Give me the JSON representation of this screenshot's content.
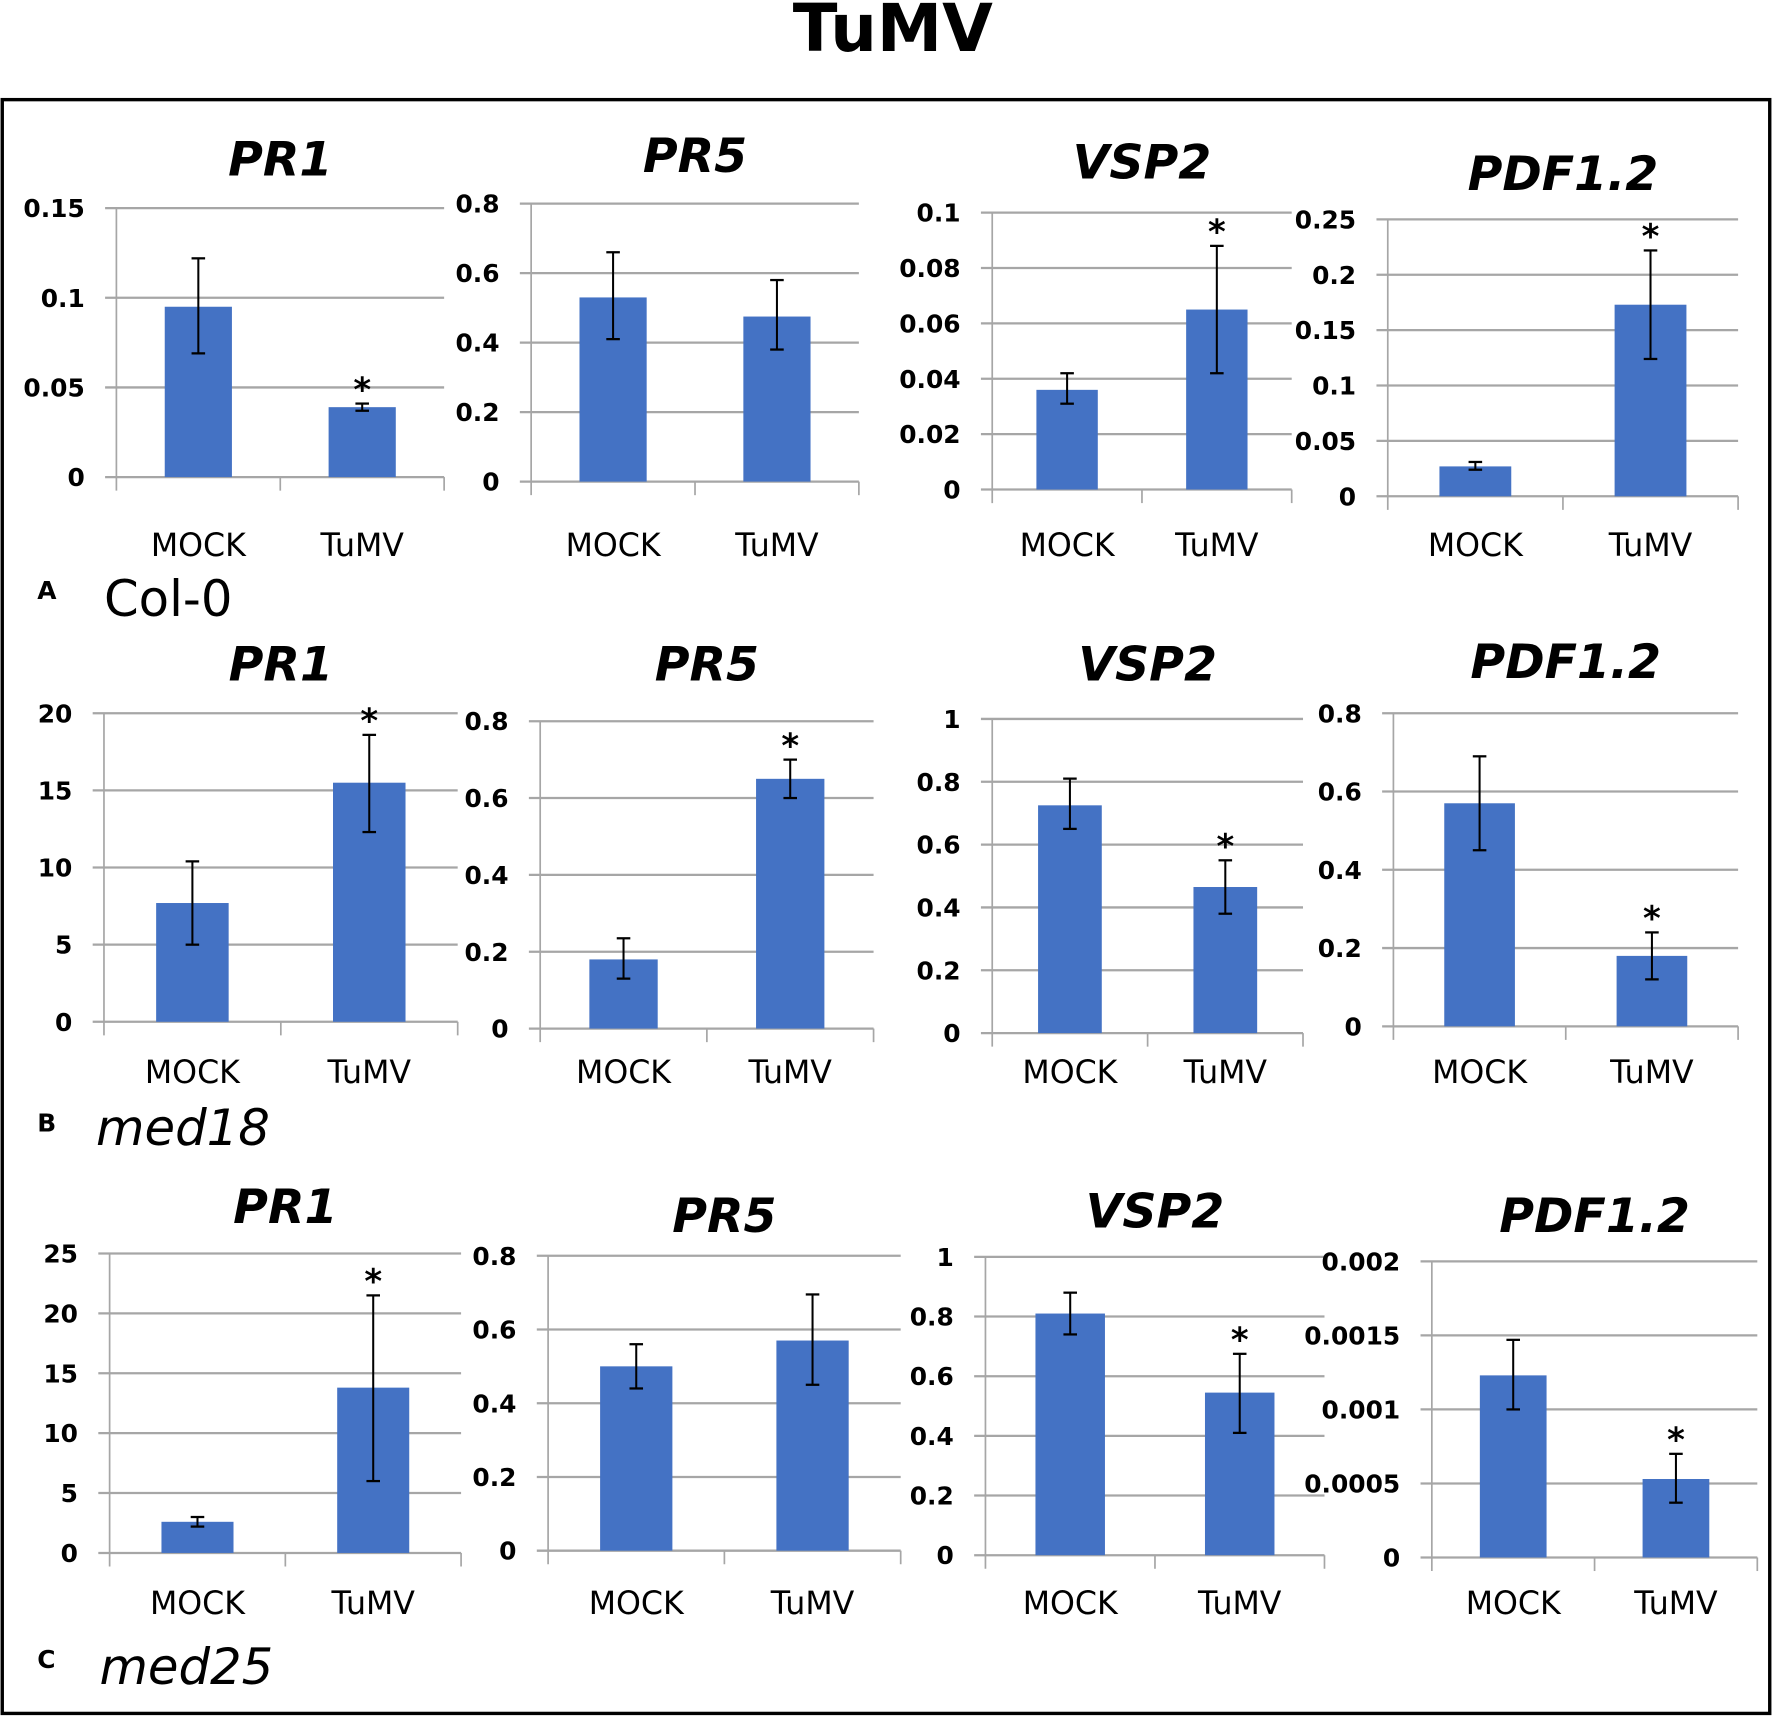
{
  "figure_title": "TuMV",
  "panels": [
    {
      "letter": "A",
      "genotype": "Col-0",
      "italic": false
    },
    {
      "letter": "B",
      "genotype": "med18",
      "italic": true
    },
    {
      "letter": "C",
      "genotype": "med25",
      "italic": true
    }
  ],
  "colors": {
    "bar": "#4472C4",
    "grid": "#A6A6A6",
    "border": "#000000"
  },
  "chart_data": [
    {
      "type": "bar",
      "panel": "A",
      "title": "PR1",
      "categories": [
        "MOCK",
        "TuMV"
      ],
      "values": [
        0.095,
        0.039
      ],
      "error_low": [
        0.069,
        0.037
      ],
      "error_high": [
        0.122,
        0.041
      ],
      "significant": [
        false,
        true
      ],
      "ylim": [
        0,
        0.15
      ],
      "ticks": [
        "0",
        "0.05",
        "0.1",
        "0.15"
      ],
      "grid": true
    },
    {
      "type": "bar",
      "panel": "A",
      "title": "PR5",
      "categories": [
        "MOCK",
        "TuMV"
      ],
      "values": [
        0.53,
        0.475
      ],
      "error_low": [
        0.41,
        0.38
      ],
      "error_high": [
        0.66,
        0.58
      ],
      "significant": [
        false,
        false
      ],
      "ylim": [
        0,
        0.8
      ],
      "ticks": [
        "0",
        "0.2",
        "0.4",
        "0.6",
        "0.8"
      ],
      "grid": true
    },
    {
      "type": "bar",
      "panel": "A",
      "title": "VSP2",
      "categories": [
        "MOCK",
        "TuMV"
      ],
      "values": [
        0.036,
        0.065
      ],
      "error_low": [
        0.031,
        0.042
      ],
      "error_high": [
        0.042,
        0.088
      ],
      "significant": [
        false,
        true
      ],
      "ylim": [
        0,
        0.1
      ],
      "ticks": [
        "0",
        "0.02",
        "0.04",
        "0.06",
        "0.08",
        "0.1"
      ],
      "grid": true
    },
    {
      "type": "bar",
      "panel": "A",
      "title": "PDF1.2",
      "categories": [
        "MOCK",
        "TuMV"
      ],
      "values": [
        0.027,
        0.173
      ],
      "error_low": [
        0.024,
        0.124
      ],
      "error_high": [
        0.031,
        0.222
      ],
      "significant": [
        false,
        true
      ],
      "ylim": [
        0,
        0.25
      ],
      "ticks": [
        "0",
        "0.05",
        "0.1",
        "0.15",
        "0.2",
        "0.25"
      ],
      "grid": true
    },
    {
      "type": "bar",
      "panel": "B",
      "title": "PR1",
      "categories": [
        "MOCK",
        "TuMV"
      ],
      "values": [
        7.7,
        15.5
      ],
      "error_low": [
        5.0,
        12.3
      ],
      "error_high": [
        10.4,
        18.6
      ],
      "significant": [
        false,
        true
      ],
      "ylim": [
        0,
        20
      ],
      "ticks": [
        "0",
        "5",
        "10",
        "15",
        "20"
      ],
      "grid": true
    },
    {
      "type": "bar",
      "panel": "B",
      "title": "PR5",
      "categories": [
        "MOCK",
        "TuMV"
      ],
      "values": [
        0.18,
        0.65
      ],
      "error_low": [
        0.13,
        0.6
      ],
      "error_high": [
        0.235,
        0.7
      ],
      "significant": [
        false,
        true
      ],
      "ylim": [
        0,
        0.8
      ],
      "ticks": [
        "0",
        "0.2",
        "0.4",
        "0.6",
        "0.8"
      ],
      "grid": true
    },
    {
      "type": "bar",
      "panel": "B",
      "title": "VSP2",
      "categories": [
        "MOCK",
        "TuMV"
      ],
      "values": [
        0.725,
        0.465
      ],
      "error_low": [
        0.65,
        0.38
      ],
      "error_high": [
        0.81,
        0.55
      ],
      "significant": [
        false,
        true
      ],
      "ylim": [
        0,
        1
      ],
      "ticks": [
        "0",
        "0.2",
        "0.4",
        "0.6",
        "0.8",
        "1"
      ],
      "grid": true
    },
    {
      "type": "bar",
      "panel": "B",
      "title": "PDF1.2",
      "categories": [
        "MOCK",
        "TuMV"
      ],
      "values": [
        0.57,
        0.18
      ],
      "error_low": [
        0.45,
        0.12
      ],
      "error_high": [
        0.69,
        0.24
      ],
      "significant": [
        false,
        true
      ],
      "ylim": [
        0,
        0.8
      ],
      "ticks": [
        "0",
        "0.2",
        "0.4",
        "0.6",
        "0.8"
      ],
      "grid": true
    },
    {
      "type": "bar",
      "panel": "C",
      "title": "PR1",
      "categories": [
        "MOCK",
        "TuMV"
      ],
      "values": [
        2.6,
        13.8
      ],
      "error_low": [
        2.2,
        6.0
      ],
      "error_high": [
        3.0,
        21.5
      ],
      "significant": [
        false,
        true
      ],
      "ylim": [
        0,
        25
      ],
      "ticks": [
        "0",
        "5",
        "10",
        "15",
        "20",
        "25"
      ],
      "grid": true
    },
    {
      "type": "bar",
      "panel": "C",
      "title": "PR5",
      "categories": [
        "MOCK",
        "TuMV"
      ],
      "values": [
        0.5,
        0.57
      ],
      "error_low": [
        0.44,
        0.45
      ],
      "error_high": [
        0.56,
        0.695
      ],
      "significant": [
        false,
        false
      ],
      "ylim": [
        0,
        0.8
      ],
      "ticks": [
        "0",
        "0.2",
        "0.4",
        "0.6",
        "0.8"
      ],
      "grid": true
    },
    {
      "type": "bar",
      "panel": "C",
      "title": "VSP2",
      "categories": [
        "MOCK",
        "TuMV"
      ],
      "values": [
        0.81,
        0.545
      ],
      "error_low": [
        0.74,
        0.41
      ],
      "error_high": [
        0.88,
        0.675
      ],
      "significant": [
        false,
        true
      ],
      "ylim": [
        0,
        1
      ],
      "ticks": [
        "0",
        "0.2",
        "0.4",
        "0.6",
        "0.8",
        "1"
      ],
      "grid": true
    },
    {
      "type": "bar",
      "panel": "C",
      "title": "PDF1.2",
      "categories": [
        "MOCK",
        "TuMV"
      ],
      "values": [
        0.00123,
        0.00053
      ],
      "error_low": [
        0.001,
        0.00037
      ],
      "error_high": [
        0.00147,
        0.0007
      ],
      "significant": [
        false,
        true
      ],
      "ylim": [
        0,
        0.002
      ],
      "ticks": [
        "0",
        "0.0005",
        "0.001",
        "0.0015",
        "0.002"
      ],
      "grid": true
    }
  ],
  "significance_marker": "*"
}
